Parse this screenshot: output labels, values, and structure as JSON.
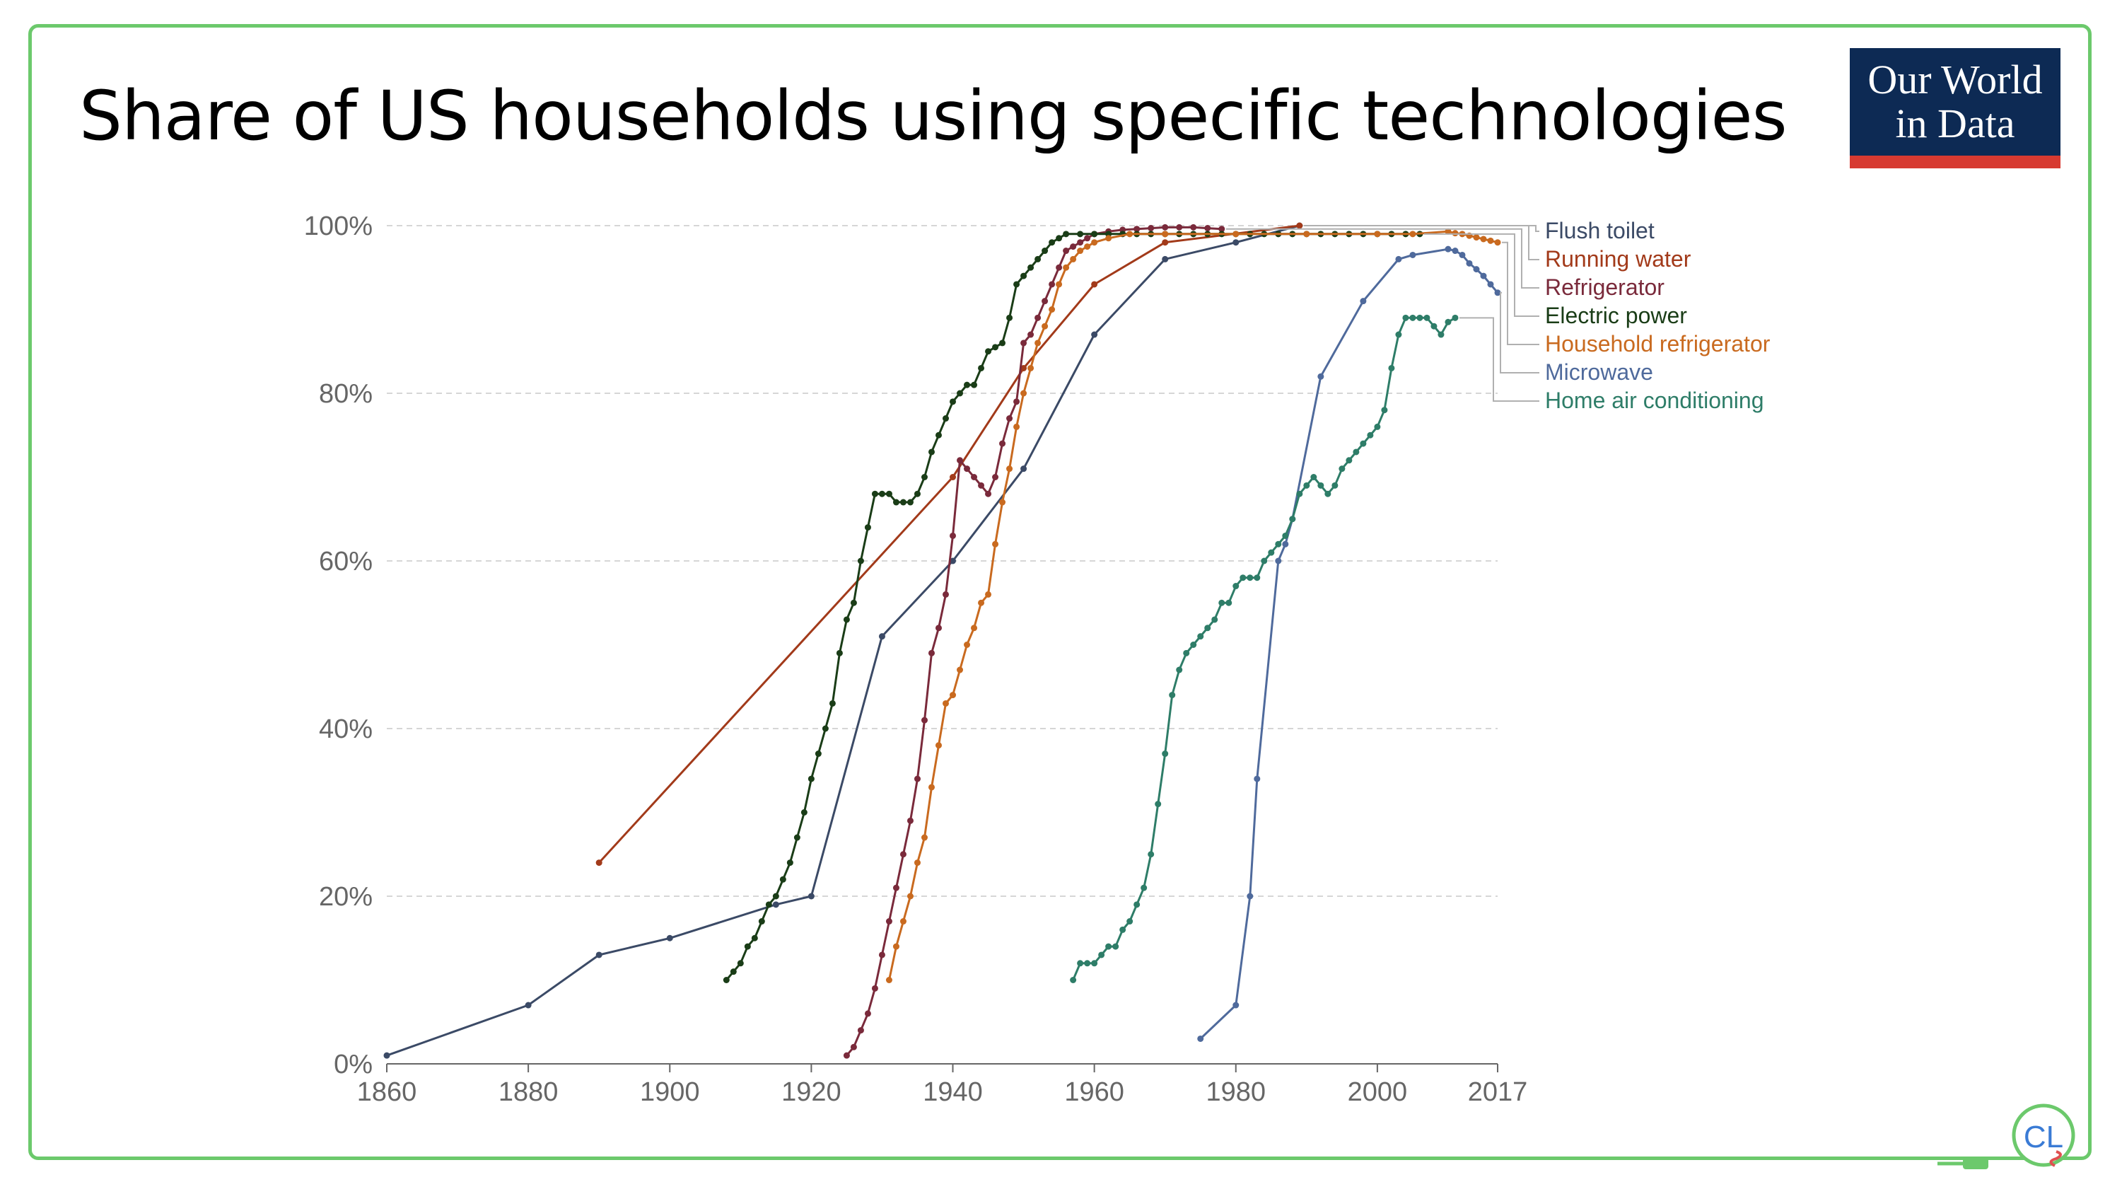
{
  "slide": {
    "title": "Share of US households using specific technologies",
    "logo_line1": "Our World",
    "logo_line2": "in Data",
    "corner_badge_text": "CL"
  },
  "colors": {
    "frame": "#6cc96c",
    "logo_bg": "#0d2a54",
    "logo_bar": "#d73a31"
  },
  "chart_data": {
    "type": "line",
    "title": "Share of US households using specific technologies",
    "xlabel": "",
    "ylabel": "",
    "xlim": [
      1860,
      2017
    ],
    "ylim": [
      0,
      100
    ],
    "x_ticks": [
      1860,
      1880,
      1900,
      1920,
      1940,
      1960,
      1980,
      2000,
      2017
    ],
    "x_tick_labels": [
      "1860",
      "1880",
      "1900",
      "1920",
      "1940",
      "1960",
      "1980",
      "2000",
      "2017"
    ],
    "y_ticks": [
      0,
      20,
      40,
      60,
      80,
      100
    ],
    "y_tick_labels": [
      "0%",
      "20%",
      "40%",
      "60%",
      "80%",
      "100%"
    ],
    "grid": "horizontal dashed",
    "legend_position": "right",
    "series": [
      {
        "name": "Flush toilet",
        "color": "#3b4a66",
        "points": [
          [
            1860,
            1
          ],
          [
            1880,
            7
          ],
          [
            1890,
            13
          ],
          [
            1900,
            15
          ],
          [
            1915,
            19
          ],
          [
            1920,
            20
          ],
          [
            1930,
            51
          ],
          [
            1940,
            60
          ],
          [
            1950,
            71
          ],
          [
            1960,
            87
          ],
          [
            1970,
            96
          ],
          [
            1980,
            98
          ],
          [
            1989,
            100
          ]
        ]
      },
      {
        "name": "Running water",
        "color": "#a23a1a",
        "points": [
          [
            1890,
            24
          ],
          [
            1940,
            70
          ],
          [
            1950,
            83
          ],
          [
            1960,
            93
          ],
          [
            1970,
            98
          ],
          [
            1989,
            100
          ]
        ]
      },
      {
        "name": "Refrigerator",
        "color": "#7a2a3b",
        "points": [
          [
            1925,
            1
          ],
          [
            1926,
            2
          ],
          [
            1927,
            4
          ],
          [
            1928,
            6
          ],
          [
            1929,
            9
          ],
          [
            1930,
            13
          ],
          [
            1931,
            17
          ],
          [
            1932,
            21
          ],
          [
            1933,
            25
          ],
          [
            1934,
            29
          ],
          [
            1935,
            34
          ],
          [
            1936,
            41
          ],
          [
            1937,
            49
          ],
          [
            1938,
            52
          ],
          [
            1939,
            56
          ],
          [
            1940,
            63
          ],
          [
            1941,
            72
          ],
          [
            1942,
            71
          ],
          [
            1943,
            70
          ],
          [
            1944,
            69
          ],
          [
            1945,
            68
          ],
          [
            1946,
            70
          ],
          [
            1947,
            74
          ],
          [
            1948,
            77
          ],
          [
            1949,
            79
          ],
          [
            1950,
            86
          ],
          [
            1951,
            87
          ],
          [
            1952,
            89
          ],
          [
            1953,
            91
          ],
          [
            1954,
            93
          ],
          [
            1955,
            95
          ],
          [
            1956,
            97
          ],
          [
            1957,
            97.5
          ],
          [
            1958,
            98
          ],
          [
            1959,
            98.5
          ],
          [
            1960,
            99
          ],
          [
            1962,
            99.3
          ],
          [
            1964,
            99.5
          ],
          [
            1966,
            99.6
          ],
          [
            1968,
            99.7
          ],
          [
            1970,
            99.8
          ],
          [
            1972,
            99.8
          ],
          [
            1974,
            99.8
          ],
          [
            1976,
            99.7
          ],
          [
            1978,
            99.6
          ]
        ]
      },
      {
        "name": "Electric power",
        "color": "#1a3d17",
        "points": [
          [
            1908,
            10
          ],
          [
            1909,
            11
          ],
          [
            1910,
            12
          ],
          [
            1911,
            14
          ],
          [
            1912,
            15
          ],
          [
            1913,
            17
          ],
          [
            1914,
            19
          ],
          [
            1915,
            20
          ],
          [
            1916,
            22
          ],
          [
            1917,
            24
          ],
          [
            1918,
            27
          ],
          [
            1919,
            30
          ],
          [
            1920,
            34
          ],
          [
            1921,
            37
          ],
          [
            1922,
            40
          ],
          [
            1923,
            43
          ],
          [
            1924,
            49
          ],
          [
            1925,
            53
          ],
          [
            1926,
            55
          ],
          [
            1927,
            60
          ],
          [
            1928,
            64
          ],
          [
            1929,
            68
          ],
          [
            1930,
            68
          ],
          [
            1931,
            68
          ],
          [
            1932,
            67
          ],
          [
            1933,
            67
          ],
          [
            1934,
            67
          ],
          [
            1935,
            68
          ],
          [
            1936,
            70
          ],
          [
            1937,
            73
          ],
          [
            1938,
            75
          ],
          [
            1939,
            77
          ],
          [
            1940,
            79
          ],
          [
            1941,
            80
          ],
          [
            1942,
            81
          ],
          [
            1943,
            81
          ],
          [
            1944,
            83
          ],
          [
            1945,
            85
          ],
          [
            1946,
            85.5
          ],
          [
            1947,
            86
          ],
          [
            1948,
            89
          ],
          [
            1949,
            93
          ],
          [
            1950,
            94
          ],
          [
            1951,
            95
          ],
          [
            1952,
            96
          ],
          [
            1953,
            97
          ],
          [
            1954,
            98
          ],
          [
            1955,
            98.5
          ],
          [
            1956,
            99
          ],
          [
            1958,
            99
          ],
          [
            1960,
            99
          ],
          [
            1962,
            99
          ],
          [
            1964,
            99
          ],
          [
            1966,
            99
          ],
          [
            1968,
            99
          ],
          [
            1970,
            99
          ],
          [
            1972,
            99
          ],
          [
            1974,
            99
          ],
          [
            1976,
            99
          ],
          [
            1978,
            99
          ],
          [
            1980,
            99
          ],
          [
            1982,
            99
          ],
          [
            1984,
            99
          ],
          [
            1986,
            99
          ],
          [
            1988,
            99
          ],
          [
            1990,
            99
          ],
          [
            1992,
            99
          ],
          [
            1994,
            99
          ],
          [
            1996,
            99
          ],
          [
            1998,
            99
          ],
          [
            2000,
            99
          ],
          [
            2002,
            99
          ],
          [
            2004,
            99
          ],
          [
            2006,
            99
          ]
        ]
      },
      {
        "name": "Household refrigerator",
        "color": "#c96a1f",
        "points": [
          [
            1931,
            10
          ],
          [
            1932,
            14
          ],
          [
            1933,
            17
          ],
          [
            1934,
            20
          ],
          [
            1935,
            24
          ],
          [
            1936,
            27
          ],
          [
            1937,
            33
          ],
          [
            1938,
            38
          ],
          [
            1939,
            43
          ],
          [
            1940,
            44
          ],
          [
            1941,
            47
          ],
          [
            1942,
            50
          ],
          [
            1943,
            52
          ],
          [
            1944,
            55
          ],
          [
            1945,
            56
          ],
          [
            1946,
            62
          ],
          [
            1947,
            67
          ],
          [
            1948,
            71
          ],
          [
            1949,
            76
          ],
          [
            1950,
            80
          ],
          [
            1951,
            83
          ],
          [
            1952,
            86
          ],
          [
            1953,
            88
          ],
          [
            1954,
            90
          ],
          [
            1955,
            93
          ],
          [
            1956,
            95
          ],
          [
            1957,
            96
          ],
          [
            1958,
            97
          ],
          [
            1959,
            97.5
          ],
          [
            1960,
            98
          ],
          [
            1962,
            98.5
          ],
          [
            1965,
            99
          ],
          [
            1970,
            99
          ],
          [
            1980,
            99
          ],
          [
            1990,
            99
          ],
          [
            2000,
            99
          ],
          [
            2005,
            99
          ],
          [
            2010,
            99.3
          ],
          [
            2011,
            99.1
          ],
          [
            2012,
            99
          ],
          [
            2013,
            98.8
          ],
          [
            2014,
            98.6
          ],
          [
            2015,
            98.4
          ],
          [
            2016,
            98.2
          ],
          [
            2017,
            98
          ]
        ]
      },
      {
        "name": "Microwave",
        "color": "#4f6a9c",
        "points": [
          [
            1975,
            3
          ],
          [
            1980,
            7
          ],
          [
            1982,
            20
          ],
          [
            1983,
            34
          ],
          [
            1986,
            60
          ],
          [
            1987,
            62
          ],
          [
            1988,
            65
          ],
          [
            1992,
            82
          ],
          [
            1998,
            91
          ],
          [
            2003,
            96
          ],
          [
            2005,
            96.5
          ],
          [
            2010,
            97.2
          ],
          [
            2011,
            97
          ],
          [
            2012,
            96.5
          ],
          [
            2013,
            95.5
          ],
          [
            2014,
            94.8
          ],
          [
            2015,
            94
          ],
          [
            2016,
            93
          ],
          [
            2017,
            92
          ]
        ]
      },
      {
        "name": "Home air conditioning",
        "color": "#2e7d68",
        "points": [
          [
            1957,
            10
          ],
          [
            1958,
            12
          ],
          [
            1959,
            12
          ],
          [
            1960,
            12
          ],
          [
            1961,
            13
          ],
          [
            1962,
            14
          ],
          [
            1963,
            14
          ],
          [
            1964,
            16
          ],
          [
            1965,
            17
          ],
          [
            1966,
            19
          ],
          [
            1967,
            21
          ],
          [
            1968,
            25
          ],
          [
            1969,
            31
          ],
          [
            1970,
            37
          ],
          [
            1971,
            44
          ],
          [
            1972,
            47
          ],
          [
            1973,
            49
          ],
          [
            1974,
            50
          ],
          [
            1975,
            51
          ],
          [
            1976,
            52
          ],
          [
            1977,
            53
          ],
          [
            1978,
            55
          ],
          [
            1979,
            55
          ],
          [
            1980,
            57
          ],
          [
            1981,
            58
          ],
          [
            1982,
            58
          ],
          [
            1983,
            58
          ],
          [
            1984,
            60
          ],
          [
            1985,
            61
          ],
          [
            1986,
            62
          ],
          [
            1987,
            63
          ],
          [
            1988,
            65
          ],
          [
            1989,
            68
          ],
          [
            1990,
            69
          ],
          [
            1991,
            70
          ],
          [
            1992,
            69
          ],
          [
            1993,
            68
          ],
          [
            1994,
            69
          ],
          [
            1995,
            71
          ],
          [
            1996,
            72
          ],
          [
            1997,
            73
          ],
          [
            1998,
            74
          ],
          [
            1999,
            75
          ],
          [
            2000,
            76
          ],
          [
            2001,
            78
          ],
          [
            2002,
            83
          ],
          [
            2003,
            87
          ],
          [
            2004,
            89
          ],
          [
            2005,
            89
          ],
          [
            2006,
            89
          ],
          [
            2007,
            89
          ],
          [
            2008,
            88
          ],
          [
            2009,
            87
          ],
          [
            2010,
            88.5
          ],
          [
            2011,
            89
          ]
        ]
      }
    ]
  }
}
